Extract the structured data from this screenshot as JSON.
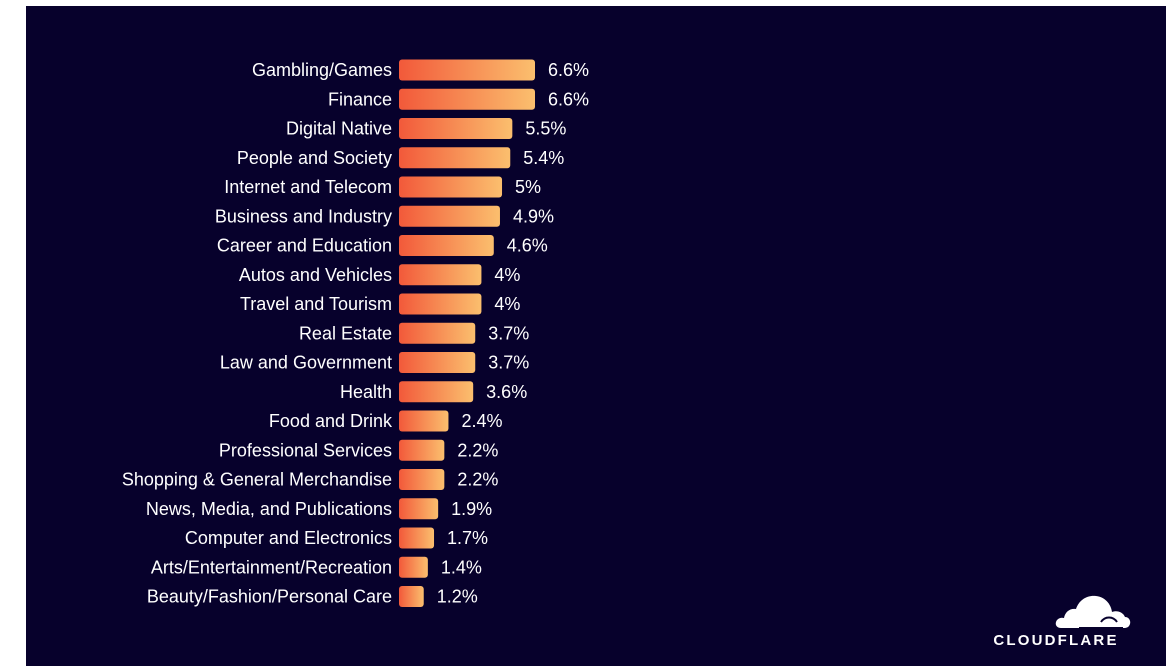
{
  "chart_data": {
    "type": "bar",
    "orientation": "horizontal",
    "categories": [
      "Gambling/Games",
      "Finance",
      "Digital Native",
      "People and Society",
      "Internet and Telecom",
      "Business and Industry",
      "Career and Education",
      "Autos and Vehicles",
      "Travel and Tourism",
      "Real Estate",
      "Law and Government",
      "Health",
      "Food and Drink",
      "Professional Services",
      "Shopping & General Merchandise",
      "News, Media, and Publications",
      "Computer and Electronics",
      "Arts/Entertainment/Recreation",
      "Beauty/Fashion/Personal Care"
    ],
    "values": [
      6.6,
      6.6,
      5.5,
      5.4,
      5.0,
      4.9,
      4.6,
      4.0,
      4.0,
      3.7,
      3.7,
      3.6,
      2.4,
      2.2,
      2.2,
      1.9,
      1.7,
      1.4,
      1.2
    ],
    "value_labels": [
      "6.6%",
      "6.6%",
      "5.5%",
      "5.4%",
      "5%",
      "4.9%",
      "4.6%",
      "4%",
      "4%",
      "3.7%",
      "3.7%",
      "3.6%",
      "2.4%",
      "2.2%",
      "2.2%",
      "1.9%",
      "1.7%",
      "1.4%",
      "1.2%"
    ],
    "unit": "%",
    "xlim": [
      0,
      6.6
    ],
    "grid": false,
    "legend": "none",
    "title": "",
    "xlabel": "",
    "ylabel": ""
  },
  "colors": {
    "background": "#07012c",
    "bar_gradient_start": "#f2593a",
    "bar_gradient_end": "#fbbf6e",
    "text": "#ffffff"
  },
  "logo": {
    "text": "CLOUDFLARE",
    "icon": "cloud-icon"
  }
}
